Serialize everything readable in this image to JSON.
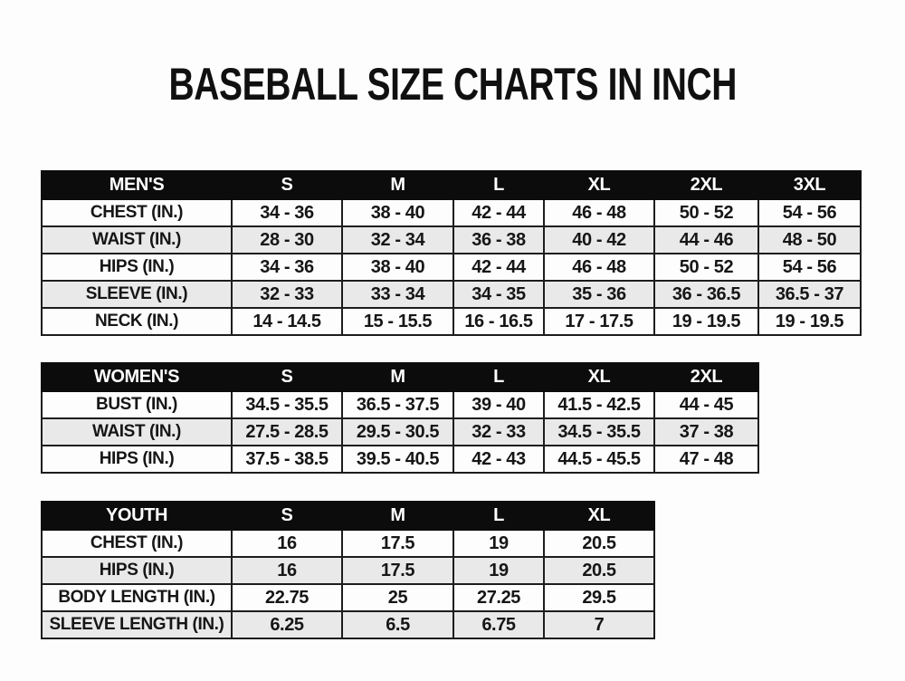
{
  "page": {
    "title": "BASEBALL SIZE CHARTS IN INCH",
    "unit": "INCH",
    "colors": {
      "header_bg": "#0c0c0c",
      "header_text": "#ffffff",
      "row_bg": "#fdfdfd",
      "row_alt_bg": "#e9e9e9",
      "border": "#1d1d1d",
      "text": "#161616"
    }
  },
  "tables": [
    {
      "name": "mens",
      "header": [
        "MEN'S",
        "S",
        "M",
        "L",
        "XL",
        "2XL",
        "3XL"
      ],
      "rows": [
        {
          "label": "CHEST (IN.)",
          "values": [
            "34 - 36",
            "38 - 40",
            "42 - 44",
            "46 - 48",
            "50 - 52",
            "54 - 56"
          ]
        },
        {
          "label": "WAIST (IN.)",
          "values": [
            "28 - 30",
            "32 - 34",
            "36 - 38",
            "40 - 42",
            "44 - 46",
            "48 - 50"
          ]
        },
        {
          "label": "HIPS (IN.)",
          "values": [
            "34 - 36",
            "38 - 40",
            "42 - 44",
            "46 - 48",
            "50 - 52",
            "54 - 56"
          ]
        },
        {
          "label": "SLEEVE (IN.)",
          "values": [
            "32 - 33",
            "33 - 34",
            "34 - 35",
            "35 - 36",
            "36 - 36.5",
            "36.5 - 37"
          ]
        },
        {
          "label": "NECK (IN.)",
          "values": [
            "14 - 14.5",
            "15 - 15.5",
            "16 - 16.5",
            "17 - 17.5",
            "19 - 19.5",
            "19 - 19.5"
          ]
        }
      ]
    },
    {
      "name": "womens",
      "header": [
        "WOMEN'S",
        "S",
        "M",
        "L",
        "XL",
        "2XL"
      ],
      "rows": [
        {
          "label": "BUST (IN.)",
          "values": [
            "34.5 - 35.5",
            "36.5 - 37.5",
            "39 - 40",
            "41.5 - 42.5",
            "44 - 45"
          ]
        },
        {
          "label": "WAIST (IN.)",
          "values": [
            "27.5 - 28.5",
            "29.5 - 30.5",
            "32 - 33",
            "34.5 - 35.5",
            "37 - 38"
          ]
        },
        {
          "label": "HIPS (IN.)",
          "values": [
            "37.5 - 38.5",
            "39.5 - 40.5",
            "42 - 43",
            "44.5 - 45.5",
            "47 - 48"
          ]
        }
      ]
    },
    {
      "name": "youth",
      "header": [
        "YOUTH",
        "S",
        "M",
        "L",
        "XL"
      ],
      "rows": [
        {
          "label": "CHEST (IN.)",
          "values": [
            "16",
            "17.5",
            "19",
            "20.5"
          ]
        },
        {
          "label": "HIPS (IN.)",
          "values": [
            "16",
            "17.5",
            "19",
            "20.5"
          ]
        },
        {
          "label": "BODY LENGTH (IN.)",
          "values": [
            "22.75",
            "25",
            "27.25",
            "29.5"
          ]
        },
        {
          "label": "SLEEVE LENGTH (IN.)",
          "values": [
            "6.25",
            "6.5",
            "6.75",
            "7"
          ]
        }
      ]
    }
  ]
}
